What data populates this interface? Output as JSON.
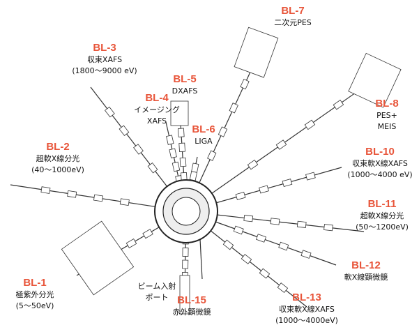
{
  "beamlines": [
    {
      "name": "BL-1",
      "lines": [
        "極紫外分光",
        "(5～50eV)"
      ]
    },
    {
      "name": "BL-2",
      "lines": [
        "超軟X線分光",
        "(40～1000eV)"
      ]
    },
    {
      "name": "BL-3",
      "lines": [
        "収束XAFS",
        "(1800～9000 eV)"
      ]
    },
    {
      "name": "BL-4",
      "lines": [
        "イメージング",
        "XAFS"
      ]
    },
    {
      "name": "BL-5",
      "lines": [
        "DXAFS"
      ]
    },
    {
      "name": "BL-6",
      "lines": [
        "LIGA"
      ]
    },
    {
      "name": "BL-7",
      "lines": [
        "二次元PES"
      ]
    },
    {
      "name": "BL-8",
      "lines": [
        "PES+",
        "MEIS"
      ]
    },
    {
      "name": "BL-10",
      "lines": [
        "収束軟X線XAFS",
        "(1000～4000 eV)"
      ]
    },
    {
      "name": "BL-11",
      "lines": [
        "超軟X線分光",
        "(50～1200eV)"
      ]
    },
    {
      "name": "BL-12",
      "lines": [
        "軟X線顕微鏡"
      ]
    },
    {
      "name": "BL-13",
      "lines": [
        "収束軟X線XAFS",
        "(1000～4000eV)"
      ]
    },
    {
      "name": "BL-15",
      "lines": [
        "赤外顕微鏡"
      ]
    }
  ],
  "injection_port": [
    "ビーム入射",
    "ポート"
  ]
}
